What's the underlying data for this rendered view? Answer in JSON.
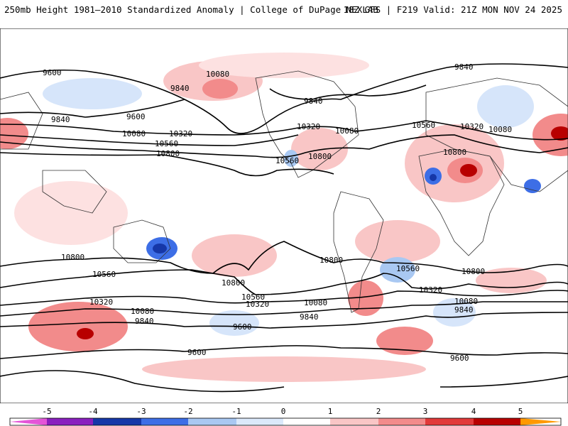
{
  "header": {
    "title_left": "250mb Height 1981–2010 Standardized Anomaly | College of DuPage NEXLAB",
    "title_right": "18Z GFS | F219 Valid: 21Z MON NOV 24 2025"
  },
  "map": {
    "contour_labels": [
      "9600",
      "9840",
      "10080",
      "10320",
      "10560",
      "10800"
    ]
  },
  "colorbar": {
    "ticks": [
      "-5",
      "-4",
      "-3",
      "-2",
      "-1",
      "0",
      "1",
      "2",
      "3",
      "4",
      "5"
    ],
    "colors": {
      "m5": "#e455d8",
      "m4": "#8a1fbf",
      "m3": "#1637a8",
      "m2": "#3d6ee6",
      "m1": "#a9c8f2",
      "m0": "#dbe9fb",
      "p0": "#ffffff",
      "p1": "#f9c6c6",
      "p2": "#f28b8b",
      "p3": "#e23a3a",
      "p4": "#b80000",
      "p5": "#ff9900"
    }
  }
}
